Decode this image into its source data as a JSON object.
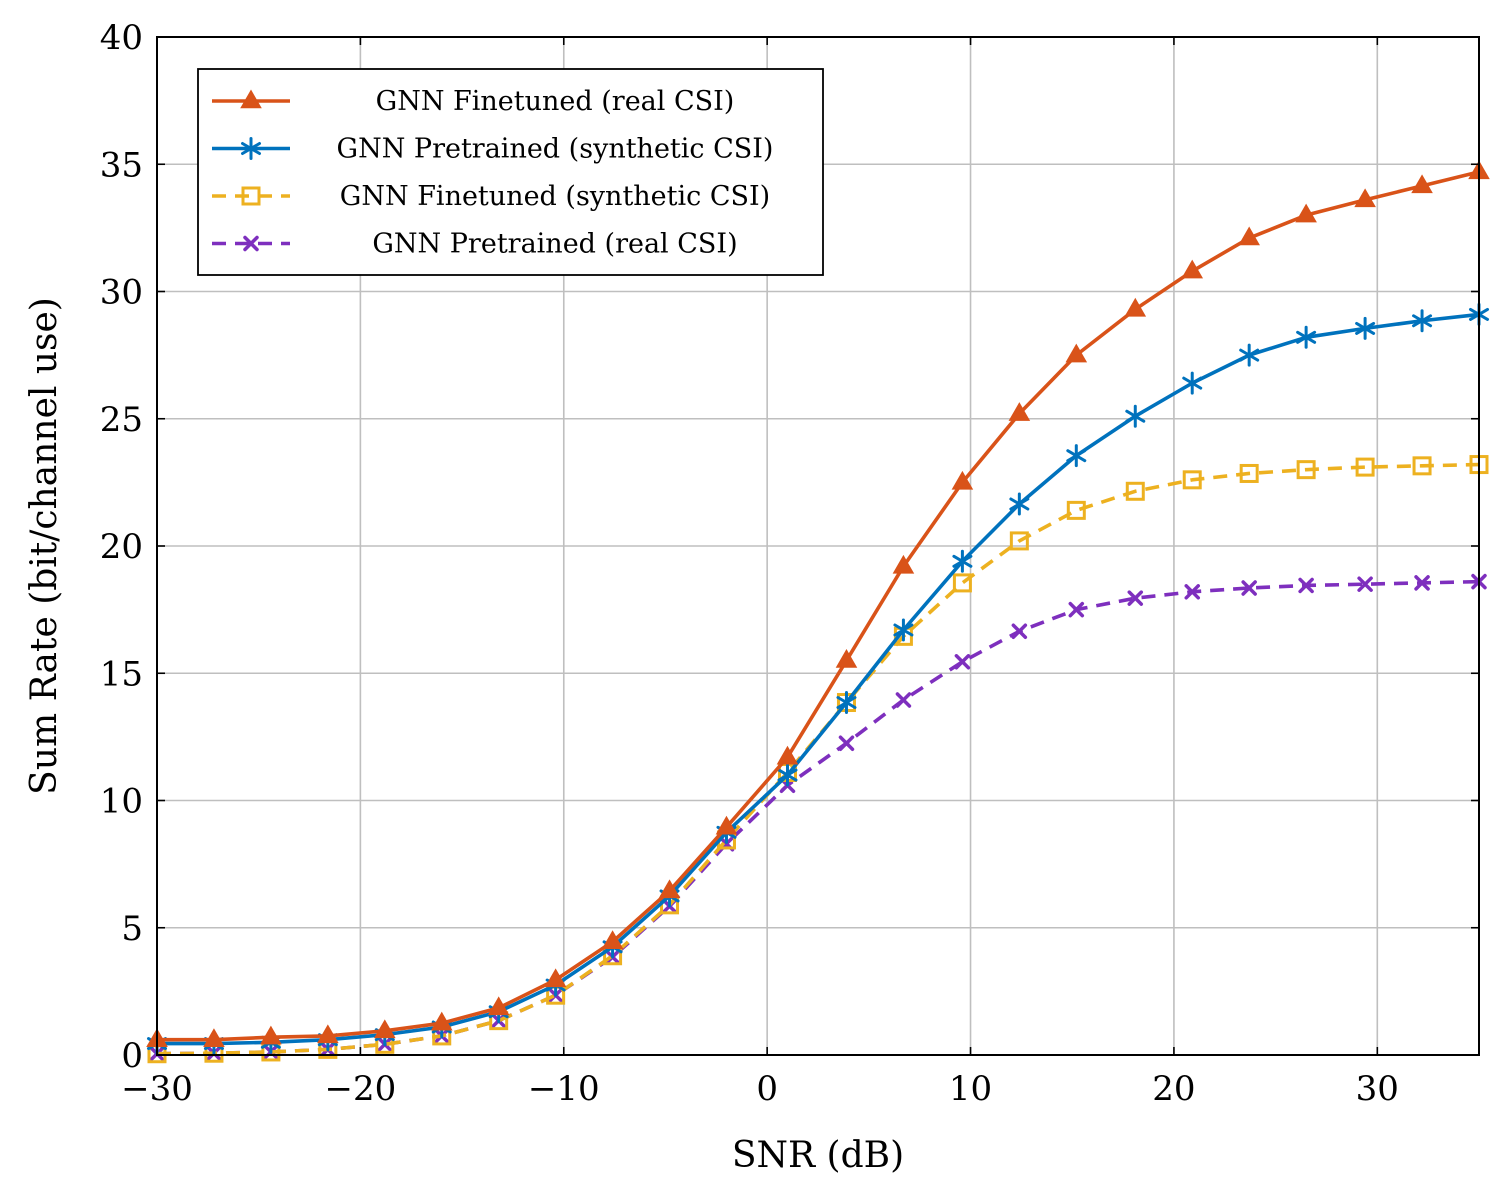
{
  "chart_data": {
    "type": "line",
    "xlabel": "SNR (dB)",
    "ylabel": "Sum Rate (bit/channel use)",
    "xlim": [
      -30,
      35
    ],
    "ylim": [
      0,
      40
    ],
    "xticks": [
      -30,
      -20,
      -10,
      0,
      10,
      20,
      30
    ],
    "xtick_labels": [
      "−30",
      "−20",
      "−10",
      "0",
      "10",
      "20",
      "30"
    ],
    "yticks": [
      0,
      5,
      10,
      15,
      20,
      25,
      30,
      35,
      40
    ],
    "ytick_labels": [
      "0",
      "5",
      "10",
      "15",
      "20",
      "25",
      "30",
      "35",
      "40"
    ],
    "grid": true,
    "legend_position": "top-left",
    "x": [
      -30,
      -27.2,
      -24.4,
      -21.6,
      -18.8,
      -16.0,
      -13.2,
      -10.4,
      -7.6,
      -4.8,
      -2.0,
      1.0,
      3.9,
      6.7,
      9.6,
      12.4,
      15.2,
      18.1,
      20.9,
      23.7,
      26.5,
      29.4,
      32.2,
      35.0
    ],
    "series": [
      {
        "name": "GNN Finetuned (real CSI)",
        "color": "#d95319",
        "marker": "triangle",
        "dashed": false,
        "values": [
          0.6,
          0.6,
          0.7,
          0.75,
          0.95,
          1.25,
          1.85,
          2.95,
          4.45,
          6.45,
          8.95,
          11.7,
          15.5,
          19.2,
          22.5,
          25.2,
          27.5,
          29.3,
          30.8,
          32.1,
          33.0,
          33.6,
          34.15,
          34.7
        ]
      },
      {
        "name": "GNN Pretrained (synthetic CSI)",
        "color": "#0072bd",
        "marker": "asterisk",
        "dashed": false,
        "values": [
          0.45,
          0.45,
          0.5,
          0.6,
          0.8,
          1.1,
          1.7,
          2.75,
          4.25,
          6.25,
          8.75,
          11.0,
          13.85,
          16.7,
          19.4,
          21.65,
          23.55,
          25.1,
          26.4,
          27.5,
          28.2,
          28.55,
          28.85,
          29.1
        ]
      },
      {
        "name": "GNN Finetuned (synthetic CSI)",
        "color": "#edb120",
        "marker": "square",
        "dashed": true,
        "values": [
          0.05,
          0.07,
          0.12,
          0.22,
          0.42,
          0.75,
          1.35,
          2.35,
          3.9,
          5.9,
          8.45,
          11.1,
          13.85,
          16.45,
          18.55,
          20.2,
          21.4,
          22.15,
          22.6,
          22.85,
          23.0,
          23.1,
          23.15,
          23.2
        ]
      },
      {
        "name": "GNN Pretrained (real CSI)",
        "color": "#7e2fbe",
        "marker": "cross",
        "dashed": true,
        "values": [
          0.05,
          0.07,
          0.12,
          0.22,
          0.42,
          0.75,
          1.35,
          2.35,
          3.85,
          5.85,
          8.3,
          10.6,
          12.25,
          13.95,
          15.45,
          16.65,
          17.5,
          17.95,
          18.2,
          18.35,
          18.45,
          18.5,
          18.55,
          18.6
        ]
      }
    ]
  }
}
